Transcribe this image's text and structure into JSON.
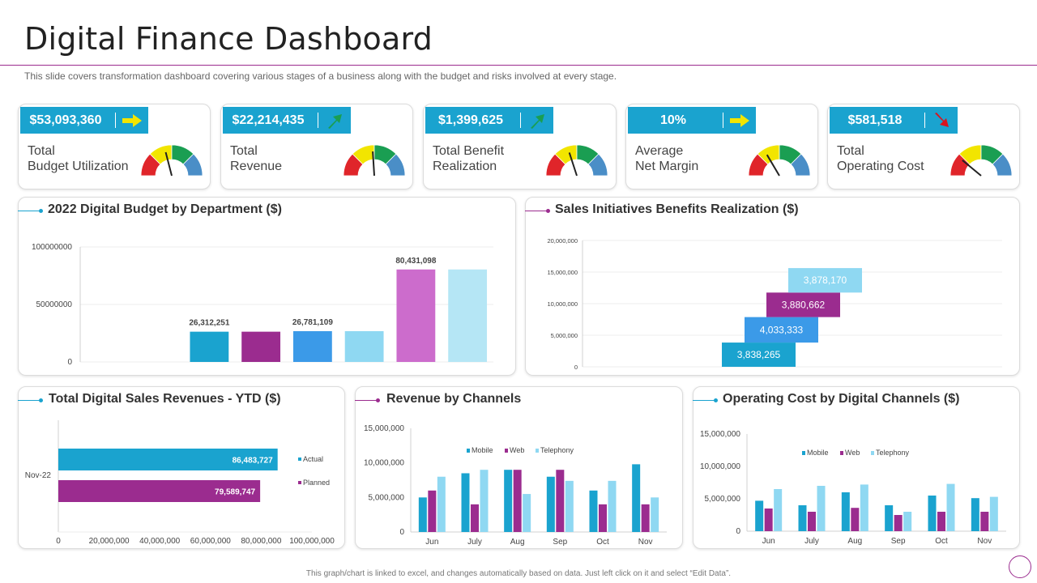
{
  "page": {
    "title": "Digital Finance Dashboard",
    "subtitle": "This slide covers transformation dashboard covering various  stages of a business along with the budget and risks involved  at every  stage.",
    "footer": "This graph/chart is linked to excel, and changes automatically based on data. Just left click on it and select “Edit Data”."
  },
  "colors": {
    "kpi_box": "#1aa3cf",
    "accent_purple": "#9b2c8f",
    "accent_cyan": "#1aa3cf",
    "arrow_yellow": "#f2e500",
    "arrow_green": "#1a9e52",
    "arrow_red": "#d9141e"
  },
  "kpis": [
    {
      "value": "$53,093,360",
      "label_line1": "Total",
      "label_line2": "Budget Utilization",
      "arrow": "right-arrow-icon",
      "arrow_dir": "right",
      "gauge_value": 0.42
    },
    {
      "value": "$22,214,435",
      "label_line1": "Total",
      "label_line2": "Revenue",
      "arrow": "up-right-arrow-icon",
      "arrow_dir": "up",
      "gauge_value": 0.48
    },
    {
      "value": "$1,399,625",
      "label_line1": "Total Benefit",
      "label_line2": "Realization",
      "arrow": "up-right-arrow-icon",
      "arrow_dir": "up",
      "gauge_value": 0.4
    },
    {
      "value": "10%",
      "label_line1": "Average",
      "label_line2": "Net Margin",
      "arrow": "right-arrow-icon",
      "arrow_dir": "right",
      "gauge_value": 0.33
    },
    {
      "value": "$581,518",
      "label_line1": "Total",
      "label_line2": "Operating Cost",
      "arrow": "down-right-arrow-icon",
      "arrow_dir": "down",
      "gauge_value": 0.22
    }
  ],
  "chart_data": [
    {
      "id": "budget_by_department",
      "type": "bar",
      "title": "2022 Digital Budget by Department ($)",
      "categories": [
        "",
        "",
        "",
        "",
        "",
        "",
        "",
        ""
      ],
      "values": [
        0,
        0,
        26312251,
        26312251,
        26781109,
        26781109,
        80431098,
        80431098
      ],
      "bar_colors": [
        "#1aa3cf",
        "#1aa3cf",
        "#1aa3cf",
        "#9b2c8f",
        "#3b9ae8",
        "#8fd8f2",
        "#cc6ccc",
        "#b5e6f5"
      ],
      "data_labels": [
        "",
        "",
        "26,312,251",
        "",
        "26,781,109",
        "",
        "80,431,098",
        ""
      ],
      "ylim": [
        0,
        100000000
      ],
      "yticks": [
        0,
        50000000,
        100000000
      ],
      "ytick_labels": [
        "0",
        "50000000",
        "100000000"
      ],
      "xlabel": "",
      "ylabel": ""
    },
    {
      "id": "sales_initiatives",
      "type": "waterfall",
      "title": "Sales Initiatives Benefits Realization ($)",
      "steps": [
        {
          "label": "3,838,265",
          "value": 3838265,
          "start": 0,
          "color": "#1aa3cf"
        },
        {
          "label": "4,033,333",
          "value": 4033333,
          "start": 3838265,
          "color": "#3b9ae8"
        },
        {
          "label": "3,880,662",
          "value": 3880662,
          "start": 7871598,
          "color": "#9b2c8f"
        },
        {
          "label": "3,878,170",
          "value": 3878170,
          "start": 11752260,
          "color": "#8fd8f2"
        }
      ],
      "ylim": [
        0,
        20000000
      ],
      "yticks": [
        0,
        5000000,
        10000000,
        15000000,
        20000000
      ],
      "ytick_labels": [
        "0",
        "5,000,000",
        "10,000,000",
        "15,000,000",
        "20,000,000"
      ]
    },
    {
      "id": "total_digital_sales",
      "type": "bar",
      "orientation": "horizontal",
      "title": "Total Digital Sales Revenues - YTD ($)",
      "categories": [
        "Nov-22"
      ],
      "series": [
        {
          "name": "Actual",
          "values": [
            86483727
          ],
          "label": "86,483,727",
          "color": "#1aa3cf"
        },
        {
          "name": "Planned",
          "values": [
            79589747
          ],
          "label": "79,589,747",
          "color": "#9b2c8f"
        }
      ],
      "xlim": [
        0,
        100000000
      ],
      "xticks": [
        0,
        20000000,
        40000000,
        60000000,
        80000000,
        100000000
      ],
      "xtick_labels": [
        "0",
        "20,000,000",
        "40,000,000",
        "60,000,000",
        "80,000,000",
        "100,000,000"
      ]
    },
    {
      "id": "revenue_by_channels",
      "type": "bar",
      "title": "Revenue by Channels",
      "categories": [
        "Jun",
        "July",
        "Aug",
        "Sep",
        "Oct",
        "Nov"
      ],
      "series": [
        {
          "name": "Mobile",
          "values": [
            5000000,
            8500000,
            9000000,
            8000000,
            6000000,
            9800000
          ],
          "color": "#1aa3cf"
        },
        {
          "name": "Web",
          "values": [
            6000000,
            4000000,
            9000000,
            9000000,
            4000000,
            4000000
          ],
          "color": "#9b2c8f"
        },
        {
          "name": "Telephony",
          "values": [
            8000000,
            9000000,
            5500000,
            7400000,
            7400000,
            5000000
          ],
          "color": "#8fd8f2"
        }
      ],
      "ylim": [
        0,
        15000000
      ],
      "yticks": [
        0,
        5000000,
        10000000,
        15000000
      ],
      "ytick_labels": [
        "0",
        "5,000,000",
        "10,000,000",
        "15,000,000"
      ]
    },
    {
      "id": "operating_cost_by_channels",
      "type": "bar",
      "title": "Operating Cost by Digital Channels ($)",
      "categories": [
        "Jun",
        "July",
        "Aug",
        "Sep",
        "Oct",
        "Nov"
      ],
      "series": [
        {
          "name": "Mobile",
          "values": [
            4700000,
            4000000,
            6000000,
            4000000,
            5500000,
            5100000
          ],
          "color": "#1aa3cf"
        },
        {
          "name": "Web",
          "values": [
            3500000,
            3000000,
            3600000,
            2500000,
            3000000,
            3000000
          ],
          "color": "#9b2c8f"
        },
        {
          "name": "Telephony",
          "values": [
            6500000,
            7000000,
            7200000,
            3000000,
            7300000,
            5300000
          ],
          "color": "#8fd8f2"
        }
      ],
      "ylim": [
        0,
        15000000
      ],
      "yticks": [
        0,
        5000000,
        10000000,
        15000000
      ],
      "ytick_labels": [
        "0",
        "5,000,000",
        "10,000,000",
        "15,000,000"
      ]
    }
  ]
}
